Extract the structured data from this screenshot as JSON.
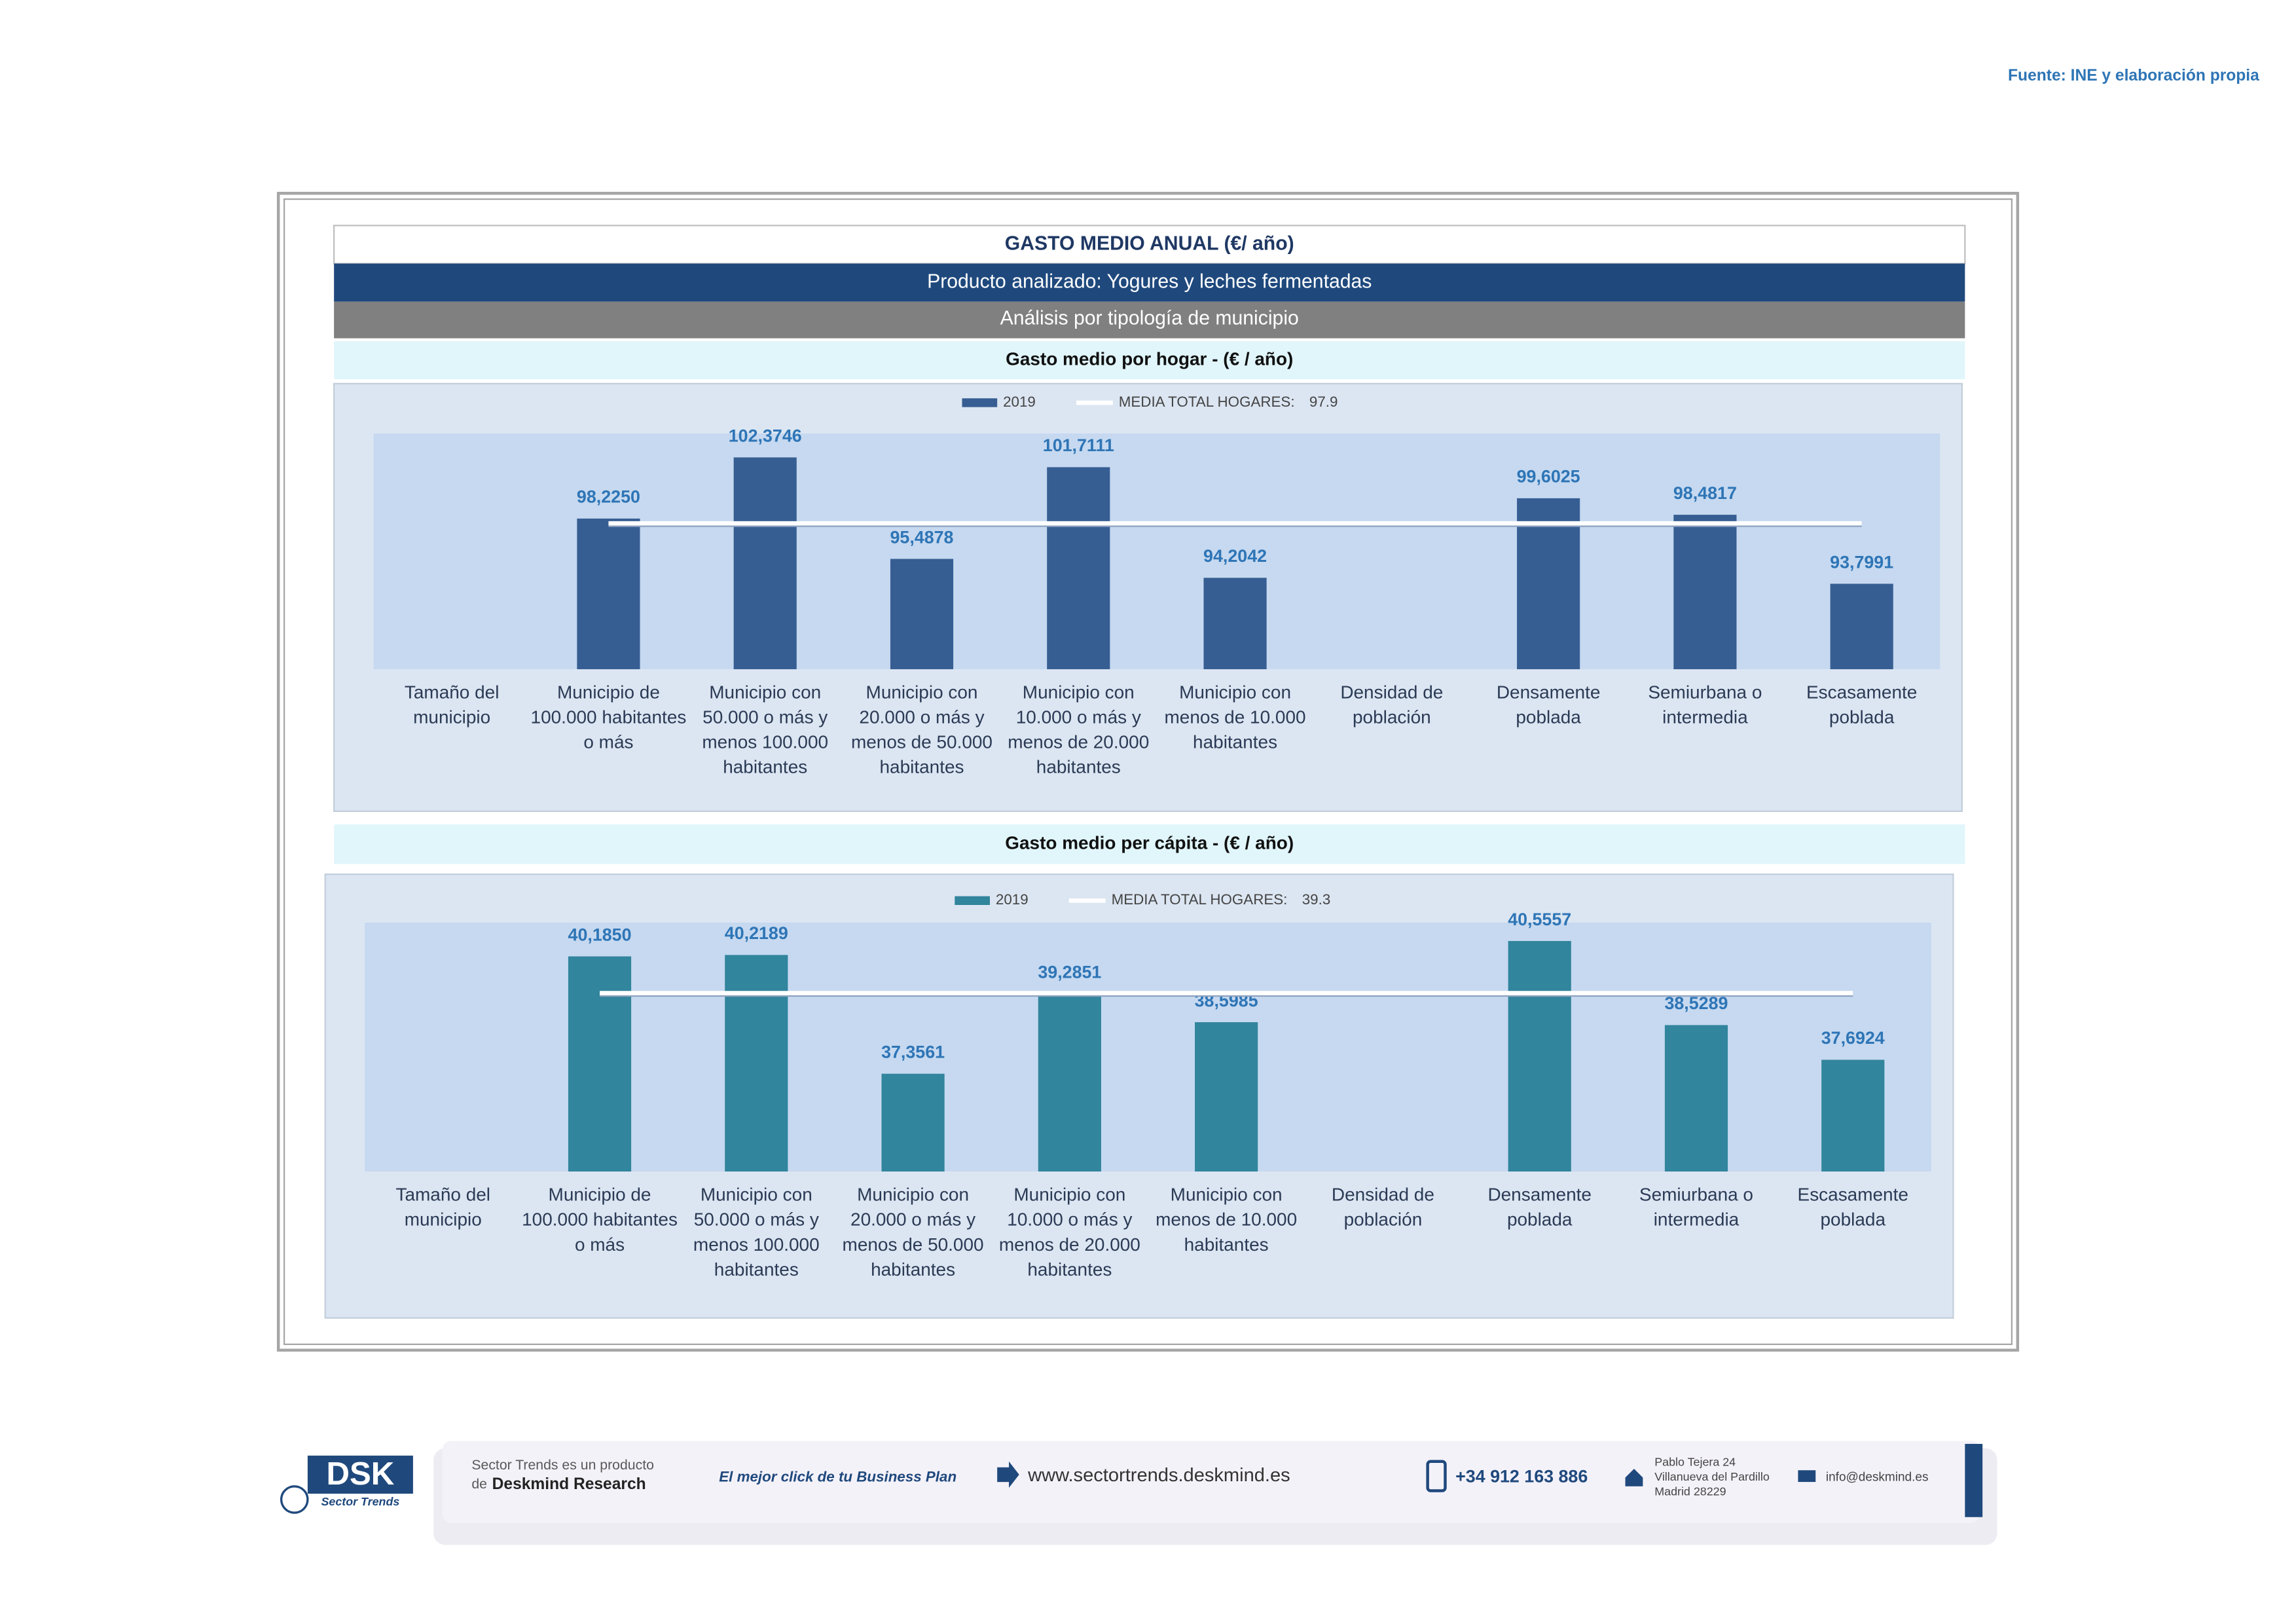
{
  "source": "Fuente: INE y elaboración propia",
  "header": {
    "title": "GASTO MEDIO ANUAL (€/ año)",
    "product": "Producto analizado: Yogures y leches fermentadas",
    "analysis": "Análisis por tipología de municipio"
  },
  "chart_data": [
    {
      "type": "bar",
      "title": "Gasto medio por hogar -  (€ / año)",
      "categories": [
        "Tamaño del municipio",
        "Municipio de 100.000 habitantes o más",
        "Municipio con 50.000 o más y menos 100.000 habitantes",
        "Municipio con 20.000 o más y menos de 50.000 habitantes",
        "Municipio con 10.000 o más y menos de 20.000 habitantes",
        "Municipio con menos de 10.000 habitantes",
        "Densidad de población",
        "Densamente poblada",
        "Semiurbana o intermedia",
        "Escasamente poblada"
      ],
      "series": [
        {
          "name": "2019",
          "color": "#375e93",
          "values": [
            null,
            98.225,
            102.3746,
            95.4878,
            101.7111,
            94.2042,
            null,
            99.6025,
            98.4817,
            93.7991
          ],
          "value_labels": [
            null,
            "98,2250",
            "102,3746",
            "95,4878",
            "101,7111",
            "94,2042",
            null,
            "99,6025",
            "98,4817",
            "93,7991"
          ]
        }
      ],
      "mean": {
        "name": "MEDIA TOTAL  HOGARES:",
        "value": 97.9,
        "color": "#ffffff"
      },
      "ylim": [
        88,
        104
      ]
    },
    {
      "type": "bar",
      "title": "Gasto medio per cápita -  (€ / año)",
      "categories": [
        "Tamaño del municipio",
        "Municipio de 100.000 habitantes o más",
        "Municipio con 50.000 o más y menos 100.000 habitantes",
        "Municipio con 20.000 o más y menos de 50.000 habitantes",
        "Municipio con 10.000 o más y menos de 20.000 habitantes",
        "Municipio con menos de 10.000 habitantes",
        "Densidad de población",
        "Densamente poblada",
        "Semiurbana o intermedia",
        "Escasamente poblada"
      ],
      "series": [
        {
          "name": "2019",
          "color": "#31859c",
          "values": [
            null,
            40.185,
            40.2189,
            37.3561,
            39.2851,
            38.5985,
            null,
            40.5557,
            38.5289,
            37.6924
          ],
          "value_labels": [
            null,
            "40,1850",
            "40,2189",
            "37,3561",
            "39,2851",
            "38,5985",
            null,
            "40,5557",
            "38,5289",
            "37,6924"
          ]
        }
      ],
      "mean": {
        "name": "MEDIA TOTAL  HOGARES:",
        "value": 39.3,
        "color": "#ffffff"
      },
      "ylim": [
        35,
        41
      ]
    }
  ],
  "footer": {
    "logo": "DSK",
    "logo_sub": "Sector Trends",
    "product_line": "Sector Trends es un producto",
    "product_de": "de",
    "product_name": "Deskmind Research",
    "slogan": "El mejor click de tu Business Plan",
    "web": "www.sectortrends.deskmind.es",
    "phone": "+34 912 163 886",
    "address1": "Pablo Tejera 24",
    "address2": "Villanueva del Pardillo",
    "address3": "Madrid 28229",
    "email": "info@deskmind.es"
  }
}
